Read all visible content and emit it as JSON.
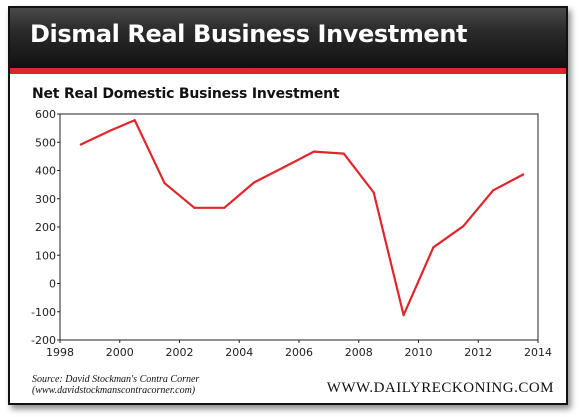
{
  "banner": {
    "title": "Dismal Real Business Investment"
  },
  "chart_data": {
    "type": "line",
    "title": "Net Real Domestic Business Investment",
    "xlabel": "",
    "ylabel": "",
    "xlim": [
      1998,
      2014
    ],
    "ylim": [
      -200,
      600
    ],
    "x_ticks": [
      1998,
      2000,
      2002,
      2004,
      2006,
      2008,
      2010,
      2012,
      2014
    ],
    "y_ticks": [
      600,
      500,
      400,
      300,
      200,
      100,
      0,
      -100,
      -200
    ],
    "grid": false,
    "legend": "none",
    "line_color": "#e0262d",
    "series": [
      {
        "x": [
          1998.7,
          1999.7,
          2000.5,
          2001.5,
          2002.5,
          2003.5,
          2004.5,
          2005.5,
          2006.5,
          2007.5,
          2008.5,
          2009.5,
          2010.5,
          2011.5,
          2012.5,
          2013.5
        ],
        "values": [
          492,
          542,
          578,
          355,
          268,
          268,
          358,
          412,
          467,
          460,
          322,
          -112,
          128,
          203,
          330,
          386
        ]
      }
    ]
  },
  "footer": {
    "source_line1": "Source: David Stockman's Contra Corner",
    "source_line2": "(www.davidstockmanscontracorner.com)",
    "brand": "WWW.DAILYRECKONING.COM"
  }
}
